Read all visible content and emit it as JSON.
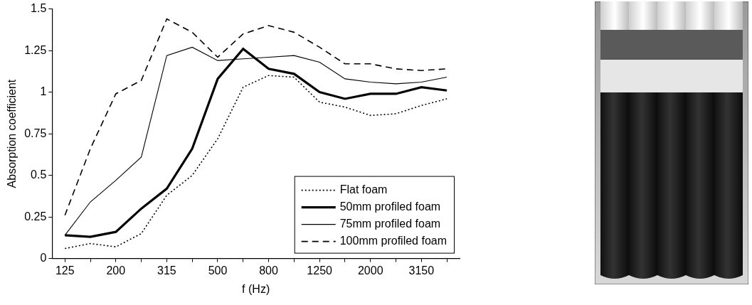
{
  "chart_data": {
    "type": "line",
    "x_label": "f (Hz)",
    "y_label": "Absorption coefficient",
    "categories": [
      125,
      null,
      200,
      null,
      315,
      null,
      500,
      null,
      800,
      null,
      1250,
      null,
      2000,
      null,
      3150,
      null
    ],
    "series": [
      {
        "name": "Flat foam",
        "color": "#000000",
        "line_style": "dotted",
        "values": [
          0.06,
          0.09,
          0.07,
          0.15,
          0.38,
          0.5,
          0.72,
          1.03,
          1.1,
          1.09,
          0.94,
          0.91,
          0.86,
          0.87,
          0.92,
          0.96
        ]
      },
      {
        "name": "50mm profiled foam",
        "color": "#000000",
        "line_style": "solid",
        "values": [
          0.14,
          0.13,
          0.16,
          0.3,
          0.42,
          0.66,
          1.08,
          1.26,
          1.14,
          1.11,
          1.0,
          0.96,
          0.99,
          0.99,
          1.03,
          1.01
        ]
      },
      {
        "name": "75mm profiled foam",
        "color": "#000000",
        "line_style": "solid",
        "values": [
          0.14,
          0.34,
          0.47,
          0.61,
          1.22,
          1.27,
          1.19,
          1.2,
          1.21,
          1.22,
          1.18,
          1.08,
          1.06,
          1.05,
          1.06,
          1.09
        ]
      },
      {
        "name": "100mm profiled foam",
        "color": "#000000",
        "line_style": "dashed",
        "values": [
          0.26,
          0.66,
          0.99,
          1.07,
          1.44,
          1.36,
          1.21,
          1.35,
          1.4,
          1.36,
          1.27,
          1.17,
          1.17,
          1.14,
          1.13,
          1.14
        ]
      }
    ],
    "ylim": [
      0,
      1.5
    ],
    "yticks": [
      0,
      0.25,
      0.5,
      0.75,
      1,
      1.25,
      1.5
    ],
    "grid": false,
    "legend": "lower right"
  }
}
